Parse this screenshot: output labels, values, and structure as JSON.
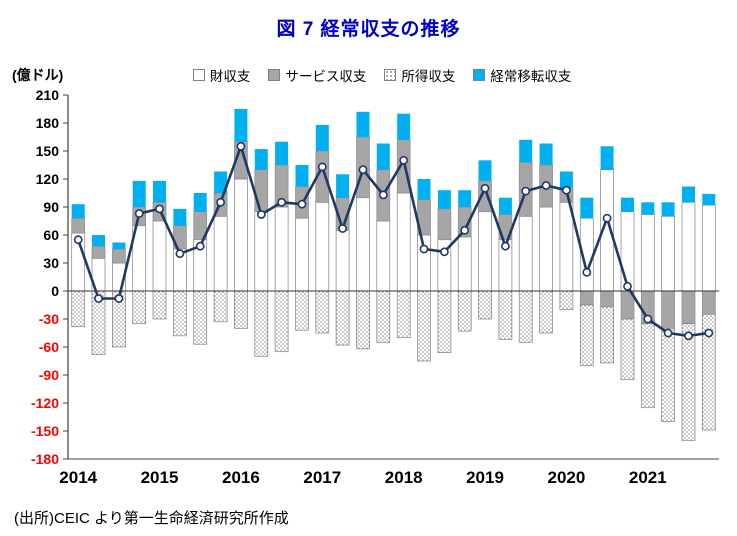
{
  "title": "図 7  経常収支の推移",
  "source_note": "(出所)CEIC より第一生命経済研究所作成",
  "colors": {
    "title": "#0000CC",
    "negative_tick": "#FF0000",
    "axis": "#404040",
    "line": "#1F3864",
    "goods": "#FFFFFF",
    "services": "#A6A6A6",
    "transfers": "#00B0F0"
  },
  "chart_data": {
    "type": "bar",
    "subtype": "stacked-bar-with-line",
    "title": "図 7  経常収支の推移",
    "unit_label": "(億ドル)",
    "ylim": [
      -180,
      210
    ],
    "ytick_step": 30,
    "grid": false,
    "legend_position": "top",
    "x_years": [
      "2014",
      "2015",
      "2016",
      "2017",
      "2018",
      "2019",
      "2020",
      "2021"
    ],
    "quarters": [
      "2014Q1",
      "2014Q2",
      "2014Q3",
      "2014Q4",
      "2015Q1",
      "2015Q2",
      "2015Q3",
      "2015Q4",
      "2016Q1",
      "2016Q2",
      "2016Q3",
      "2016Q4",
      "2017Q1",
      "2017Q2",
      "2017Q3",
      "2017Q4",
      "2018Q1",
      "2018Q2",
      "2018Q3",
      "2018Q4",
      "2019Q1",
      "2019Q2",
      "2019Q3",
      "2019Q4",
      "2020Q1",
      "2020Q2",
      "2020Q3",
      "2020Q4",
      "2021Q1",
      "2021Q2",
      "2021Q3",
      "2021Q4"
    ],
    "series": [
      {
        "name": "財収支",
        "type": "bar",
        "color": "#FFFFFF",
        "border": "#7F7F7F",
        "pattern": "none",
        "values": [
          62,
          35,
          30,
          70,
          75,
          45,
          55,
          80,
          120,
          85,
          90,
          78,
          95,
          65,
          100,
          75,
          105,
          60,
          55,
          58,
          85,
          55,
          80,
          90,
          95,
          78,
          130,
          85,
          82,
          80,
          95,
          92
        ]
      },
      {
        "name": "サービス収支",
        "type": "bar",
        "color": "#A6A6A6",
        "border": "#8C8C8C",
        "pattern": "none",
        "values": [
          16,
          13,
          15,
          20,
          20,
          25,
          30,
          25,
          40,
          45,
          45,
          34,
          55,
          35,
          65,
          55,
          57,
          38,
          33,
          32,
          33,
          27,
          58,
          45,
          15,
          -15,
          -17,
          -30,
          -35,
          -40,
          -35,
          -25
        ]
      },
      {
        "name": "所得収支",
        "type": "bar",
        "color": "#FFFFFF",
        "border": "#7F7F7F",
        "pattern": "dots",
        "values": [
          -38,
          -68,
          -60,
          -35,
          -30,
          -48,
          -57,
          -33,
          -40,
          -70,
          -65,
          -42,
          -45,
          -58,
          -62,
          -55,
          -50,
          -75,
          -66,
          -43,
          -30,
          -52,
          -55,
          -45,
          -20,
          -65,
          -60,
          -65,
          -90,
          -100,
          -125,
          -124
        ]
      },
      {
        "name": "経常移転収支",
        "type": "bar",
        "color": "#00B0F0",
        "border": "none",
        "pattern": "none",
        "values": [
          15,
          12,
          7,
          28,
          23,
          18,
          20,
          23,
          35,
          22,
          25,
          23,
          28,
          25,
          27,
          28,
          28,
          22,
          20,
          18,
          22,
          18,
          24,
          23,
          18,
          22,
          25,
          15,
          13,
          15,
          17,
          12
        ]
      },
      {
        "name": "経常収支",
        "type": "line",
        "color": "#1F3864",
        "values": [
          55,
          -8,
          -8,
          83,
          88,
          40,
          48,
          95,
          155,
          82,
          95,
          93,
          133,
          67,
          130,
          103,
          140,
          45,
          42,
          65,
          110,
          48,
          107,
          113,
          108,
          20,
          78,
          5,
          -30,
          -45,
          -48,
          -45
        ]
      }
    ]
  }
}
